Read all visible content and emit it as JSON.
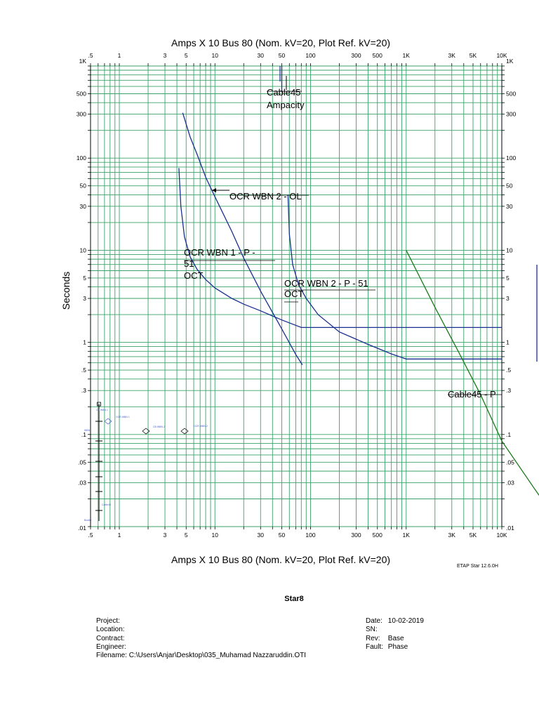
{
  "header": {
    "title": "Amps  X  10   Bus 80 (Nom. kV=20, Plot Ref. kV=20)"
  },
  "footer": {
    "title": "Amps  X  10   Bus 80 (Nom. kV=20, Plot Ref. kV=20)",
    "software": "ETAP Star 12.6.0H"
  },
  "study": {
    "name": "Star8",
    "project_label": "Project:",
    "project": "",
    "location_label": "Location:",
    "location": "",
    "contract_label": "Contract:",
    "contract": "",
    "engineer_label": "Engineer:",
    "engineer": "",
    "filename_label": "Filename:",
    "filename": "C:\\Users\\Anjar\\Desktop\\035_Muhamad Nazzaruddin.OTI",
    "date_label": "Date:",
    "date": "10-02-2019",
    "sn_label": "SN:",
    "sn": "",
    "rev_label": "Rev:",
    "rev": "Base",
    "fault_label": "Fault:",
    "fault": "Phase"
  },
  "chart_data": {
    "type": "line",
    "x_scale": "log",
    "y_scale": "log",
    "xlim": [
      0.5,
      10000
    ],
    "ylim": [
      0.01,
      1000
    ],
    "xlabel": "Amps  X  10   Bus 80 (Nom. kV=20, Plot Ref. kV=20)",
    "ylabel": "Seconds",
    "grid": true,
    "x_tick_labels": [
      {
        "v": 0.5,
        "label": ".5"
      },
      {
        "v": 1,
        "label": "1"
      },
      {
        "v": 3,
        "label": "3"
      },
      {
        "v": 5,
        "label": "5"
      },
      {
        "v": 10,
        "label": "10"
      },
      {
        "v": 30,
        "label": "30"
      },
      {
        "v": 50,
        "label": "50"
      },
      {
        "v": 100,
        "label": "100"
      },
      {
        "v": 300,
        "label": "300"
      },
      {
        "v": 500,
        "label": "500"
      },
      {
        "v": 1000,
        "label": "1K"
      },
      {
        "v": 3000,
        "label": "3K"
      },
      {
        "v": 5000,
        "label": "5K"
      },
      {
        "v": 10000,
        "label": "10K"
      }
    ],
    "y_tick_labels": [
      {
        "v": 1000,
        "label": "1K"
      },
      {
        "v": 500,
        "label": "500"
      },
      {
        "v": 300,
        "label": "300"
      },
      {
        "v": 100,
        "label": "100"
      },
      {
        "v": 50,
        "label": "50"
      },
      {
        "v": 30,
        "label": "30"
      },
      {
        "v": 10,
        "label": "10"
      },
      {
        "v": 5,
        "label": "5"
      },
      {
        "v": 3,
        "label": "3"
      },
      {
        "v": 1,
        "label": "1"
      },
      {
        "v": 0.5,
        "label": ".5"
      },
      {
        "v": 0.3,
        "label": ".3"
      },
      {
        "v": 0.1,
        "label": ".1"
      },
      {
        "v": 0.05,
        "label": ".05"
      },
      {
        "v": 0.03,
        "label": ".03"
      },
      {
        "v": 0.01,
        "label": ".01"
      }
    ],
    "series": [
      {
        "name": "OCR WBN 2 - OL",
        "color": "#1a2f8f",
        "x": [
          4.6,
          5.5,
          6.5,
          8,
          10,
          15,
          20,
          30,
          50,
          70,
          82
        ],
        "y": [
          310,
          170,
          110,
          62,
          38,
          16,
          8.2,
          3.6,
          1.4,
          0.74,
          0.57
        ]
      },
      {
        "name": "OCR WBN 1 - P - 51 OCT",
        "color": "#1a2f8f",
        "x": [
          4.2,
          4.4,
          4.8,
          5.5,
          6.5,
          8,
          10,
          15,
          20,
          30,
          50,
          80,
          10000
        ],
        "y": [
          78,
          30,
          14,
          8.5,
          6.2,
          4.8,
          3.9,
          3.0,
          2.6,
          2.2,
          1.75,
          1.45,
          1.45
        ]
      },
      {
        "name": "OCR WBN 2 - P - 51 OCT",
        "color": "#1a2f8f",
        "x": [
          58,
          60,
          65,
          75,
          90,
          120,
          200,
          400,
          700,
          1000,
          10000
        ],
        "y": [
          40,
          15,
          7,
          4.2,
          3.0,
          2.0,
          1.3,
          0.95,
          0.75,
          0.66,
          0.66
        ]
      },
      {
        "name": "Cable45 - P",
        "color": "#1b7a1b",
        "x": [
          1000,
          2000,
          3500,
          6000,
          10000
        ],
        "y": [
          10,
          2.4,
          0.8,
          0.27,
          0.085
        ]
      },
      {
        "name": "Cable45 Ampacity",
        "color": "#1a2f8f",
        "x": [
          50,
          50
        ],
        "y": [
          1000,
          520
        ]
      }
    ],
    "annotations": [
      {
        "text": "Cable45",
        "x": 46,
        "y": 520
      },
      {
        "text": "Ampacity",
        "x": 46,
        "y": 330
      },
      {
        "text": "OCR WBN 2 - OL",
        "x": 13.5,
        "y": 47
      },
      {
        "text": "OCR WBN 1 - P -",
        "x": 4.5,
        "y": 9.2
      },
      {
        "text": "51",
        "x": 4.5,
        "y": 6.5
      },
      {
        "text": "OCT",
        "x": 4.5,
        "y": 4.6
      },
      {
        "text": "OCR WBN 2 - P - 51",
        "x": 70,
        "y": 3.9
      },
      {
        "text": "OCT",
        "x": 70,
        "y": 2.8
      },
      {
        "text": "Cable45 - P",
        "x": 2700,
        "y": 0.32
      }
    ]
  },
  "one_line": {
    "labels": [
      "CB WBN 1",
      "WBN",
      "OCR WBN 1",
      "CB WBN 2",
      "OCR WBN 2",
      "Cable45",
      "Bus80"
    ]
  },
  "colors": {
    "grid": "#3aa36a",
    "relay_curve": "#1a2f8f",
    "cable_curve": "#1b7a1b",
    "one_line": "#4a5fd0"
  }
}
